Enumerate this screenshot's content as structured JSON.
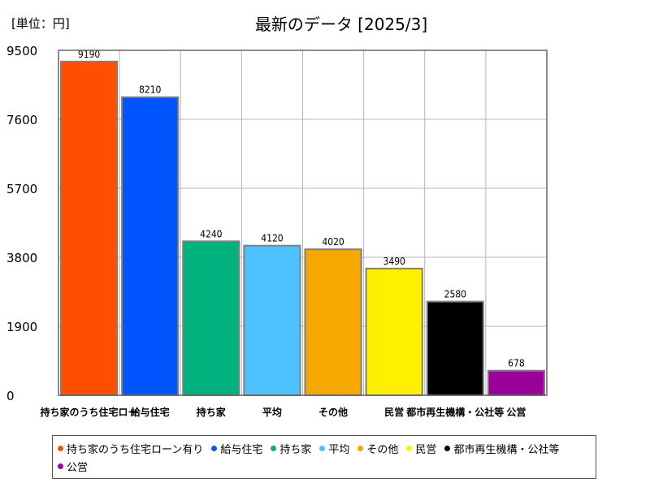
{
  "header": {
    "unit_label": "[単位：円]",
    "title": "最新のデータ [2025/3]"
  },
  "chart_data": {
    "type": "bar",
    "categories": [
      "持ち家のうち住宅ローン有り",
      "給与住宅",
      "持ち家",
      "平均",
      "その他",
      "民営",
      "都市再生機構・公社等",
      "公営"
    ],
    "tick_labels": [
      "持ち家のうち住宅ロー",
      "給与住宅",
      "持ち家",
      "平均",
      "その他",
      "民営",
      "都市再生機構・公社等",
      "公営"
    ],
    "values": [
      9190,
      8210,
      4240,
      4120,
      4020,
      3490,
      2580,
      678
    ],
    "colors": [
      "#ff4e00",
      "#0055ff",
      "#00b07d",
      "#4ec2ff",
      "#f5a800",
      "#fff000",
      "#000000",
      "#9a009a"
    ],
    "yticks": [
      0,
      1900,
      3800,
      5700,
      7600,
      9500
    ],
    "ylim": [
      0,
      9500
    ],
    "grid": true,
    "legend_placement": "bottom"
  },
  "legend": {
    "items": [
      "持ち家のうち住宅ローン有り",
      "給与住宅",
      "持ち家",
      "平均",
      "その他",
      "民営",
      "都市再生機構・公社等",
      "公営"
    ]
  }
}
